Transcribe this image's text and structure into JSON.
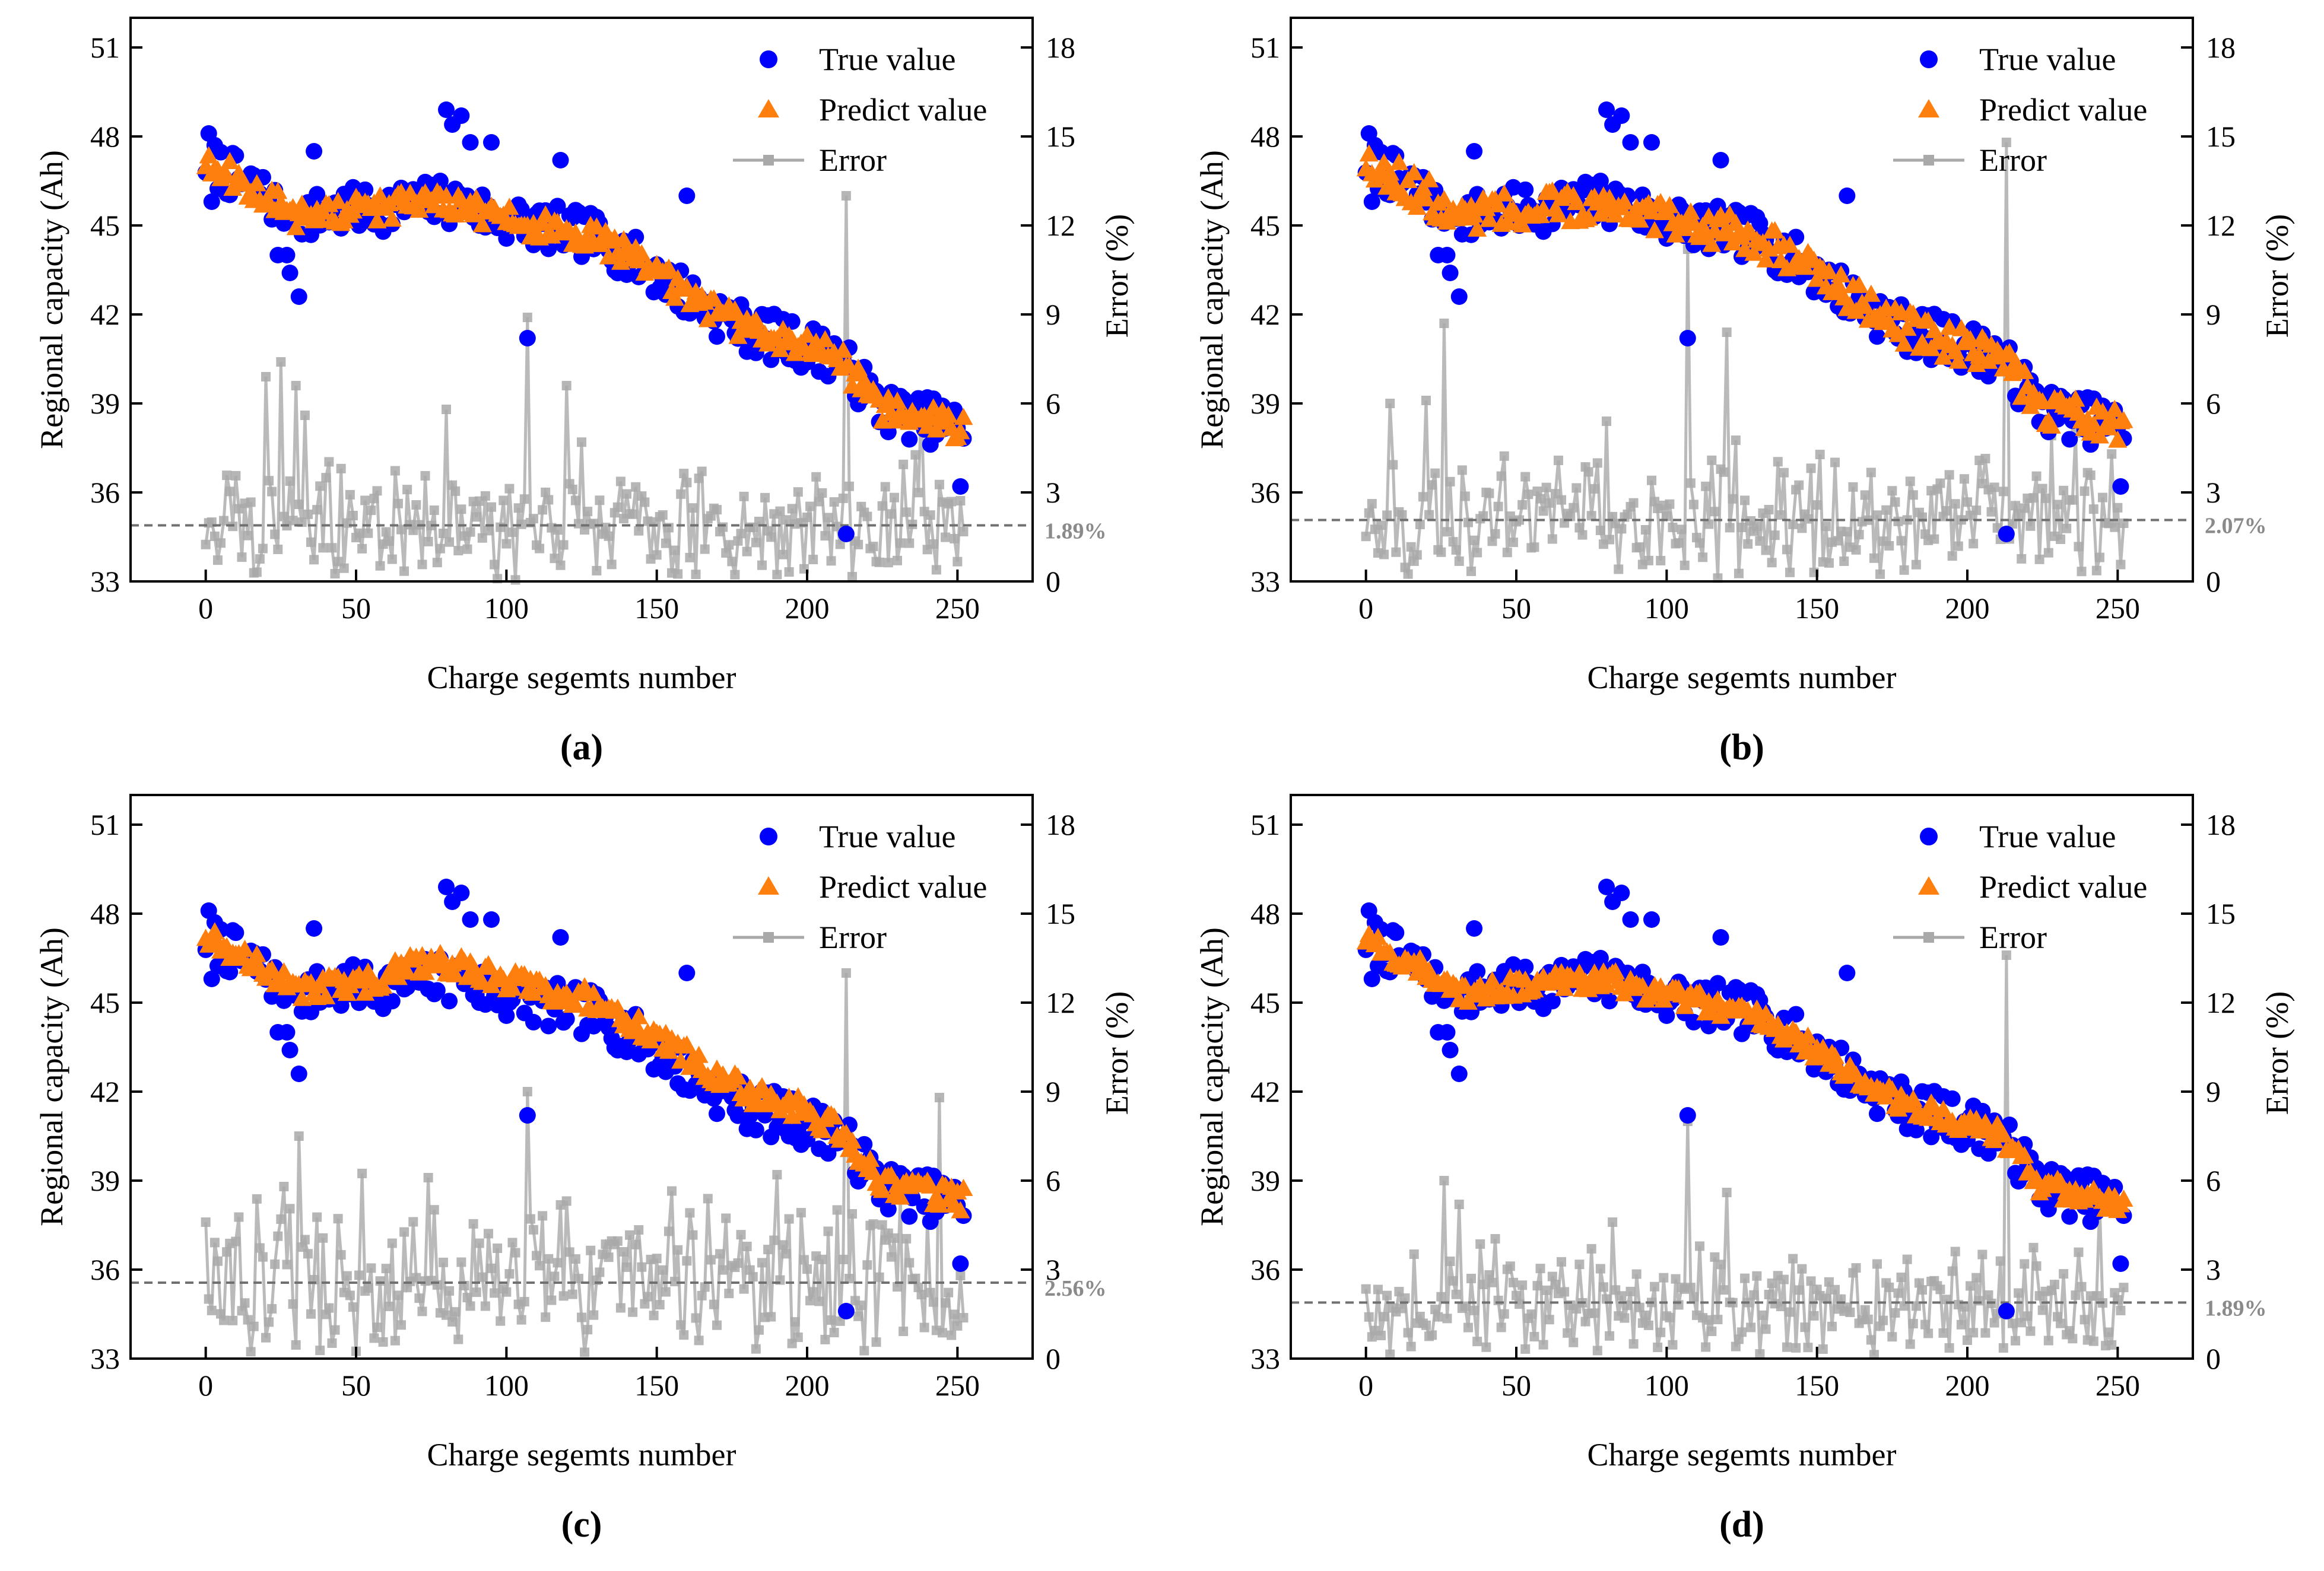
{
  "figure": {
    "colors": {
      "true": "#0000ff",
      "predict": "#ff7f0e",
      "error": "#a9a9a9",
      "mean": "#707070",
      "axis": "#000000"
    }
  },
  "chart_data": [
    {
      "type": "scatter",
      "panel_label": "(a)",
      "xlabel": "Charge segemts number",
      "ylabel": "Regional capacity (Ah)",
      "ylabel_right": "Error (%)",
      "xlim": [
        -25,
        275
      ],
      "ylim": [
        33,
        52
      ],
      "ylim_right": [
        0,
        19
      ],
      "xticks": [
        0,
        50,
        100,
        150,
        200,
        250
      ],
      "yticks": [
        33,
        36,
        39,
        42,
        45,
        48,
        51
      ],
      "yticks_right": [
        0,
        3,
        6,
        9,
        12,
        15,
        18
      ],
      "legend": [
        "True value",
        "Predict value",
        "Error"
      ],
      "mean_error": 1.89,
      "mean_error_label": "1.89%",
      "seed": 11,
      "pred_noise": 0.45,
      "pred_bias": 0.0,
      "error_spikes": [
        [
          20,
          6.9
        ],
        [
          25,
          7.4
        ],
        [
          30,
          6.6
        ],
        [
          33,
          5.6
        ],
        [
          80,
          5.8
        ],
        [
          107,
          8.9
        ],
        [
          120,
          6.6
        ],
        [
          213,
          13.0
        ],
        [
          238,
          6.0
        ]
      ]
    },
    {
      "type": "scatter",
      "panel_label": "(b)",
      "xlabel": "Charge segemts number",
      "ylabel": "Regional capacity (Ah)",
      "ylabel_right": "Error (%)",
      "xlim": [
        -25,
        275
      ],
      "ylim": [
        33,
        52
      ],
      "ylim_right": [
        0,
        19
      ],
      "xticks": [
        0,
        50,
        100,
        150,
        200,
        250
      ],
      "yticks": [
        33,
        36,
        39,
        42,
        45,
        48,
        51
      ],
      "yticks_right": [
        0,
        3,
        6,
        9,
        12,
        15,
        18
      ],
      "legend": [
        "True value",
        "Predict value",
        "Error"
      ],
      "mean_error": 2.07,
      "mean_error_label": "2.07%",
      "seed": 23,
      "pred_noise": 0.6,
      "pred_bias": 0.0,
      "error_spikes": [
        [
          8,
          6.0
        ],
        [
          20,
          6.1
        ],
        [
          26,
          8.7
        ],
        [
          80,
          5.4
        ],
        [
          107,
          11.2
        ],
        [
          120,
          8.4
        ],
        [
          213,
          14.8
        ],
        [
          236,
          5.0
        ]
      ]
    },
    {
      "type": "scatter",
      "panel_label": "(c)",
      "xlabel": "Charge segemts number",
      "ylabel": "Regional capacity (Ah)",
      "ylabel_right": "Error (%)",
      "xlim": [
        -25,
        275
      ],
      "ylim": [
        33,
        52
      ],
      "ylim_right": [
        0,
        19
      ],
      "xticks": [
        0,
        50,
        100,
        150,
        200,
        250
      ],
      "yticks": [
        33,
        36,
        39,
        42,
        45,
        48,
        51
      ],
      "yticks_right": [
        0,
        3,
        6,
        9,
        12,
        15,
        18
      ],
      "legend": [
        "True value",
        "Predict value",
        "Error"
      ],
      "mean_error": 2.56,
      "mean_error_label": "2.56%",
      "seed": 37,
      "pred_noise": 0.4,
      "pred_bias": 0.5,
      "error_spikes": [
        [
          0,
          4.6
        ],
        [
          26,
          5.8
        ],
        [
          31,
          7.5
        ],
        [
          74,
          6.1
        ],
        [
          107,
          9.0
        ],
        [
          190,
          6.2
        ],
        [
          213,
          13.0
        ],
        [
          244,
          8.8
        ]
      ]
    },
    {
      "type": "scatter",
      "panel_label": "(d)",
      "xlabel": "Charge segemts number",
      "ylabel": "Regional capacity (Ah)",
      "ylabel_right": "Error (%)",
      "xlim": [
        -25,
        275
      ],
      "ylim": [
        33,
        52
      ],
      "ylim_right": [
        0,
        19
      ],
      "xticks": [
        0,
        50,
        100,
        150,
        200,
        250
      ],
      "yticks": [
        33,
        36,
        39,
        42,
        45,
        48,
        51
      ],
      "yticks_right": [
        0,
        3,
        6,
        9,
        12,
        15,
        18
      ],
      "legend": [
        "True value",
        "Predict value",
        "Error"
      ],
      "mean_error": 1.89,
      "mean_error_label": "1.89%",
      "seed": 53,
      "pred_noise": 0.35,
      "pred_bias": 0.0,
      "error_spikes": [
        [
          26,
          6.0
        ],
        [
          31,
          5.2
        ],
        [
          82,
          4.6
        ],
        [
          107,
          8.0
        ],
        [
          120,
          5.6
        ],
        [
          213,
          13.6
        ],
        [
          244,
          5.2
        ]
      ]
    }
  ],
  "true_value_curve": {
    "description_points": [
      [
        0,
        47.2
      ],
      [
        20,
        46.0
      ],
      [
        30,
        45.3
      ],
      [
        50,
        45.5
      ],
      [
        80,
        45.8
      ],
      [
        100,
        45.2
      ],
      [
        130,
        44.6
      ],
      [
        150,
        43.4
      ],
      [
        165,
        42.3
      ],
      [
        180,
        41.5
      ],
      [
        210,
        40.6
      ],
      [
        225,
        38.8
      ],
      [
        250,
        38.2
      ]
    ],
    "outliers": [
      [
        1,
        48.1
      ],
      [
        2,
        45.8
      ],
      [
        24,
        44.0
      ],
      [
        27,
        44.0
      ],
      [
        28,
        43.4
      ],
      [
        31,
        42.6
      ],
      [
        36,
        47.5
      ],
      [
        80,
        48.9
      ],
      [
        82,
        48.4
      ],
      [
        85,
        48.7
      ],
      [
        88,
        47.8
      ],
      [
        95,
        47.8
      ],
      [
        107,
        41.2
      ],
      [
        118,
        47.2
      ],
      [
        160,
        46.0
      ],
      [
        213,
        34.6
      ],
      [
        251,
        36.2
      ]
    ]
  }
}
